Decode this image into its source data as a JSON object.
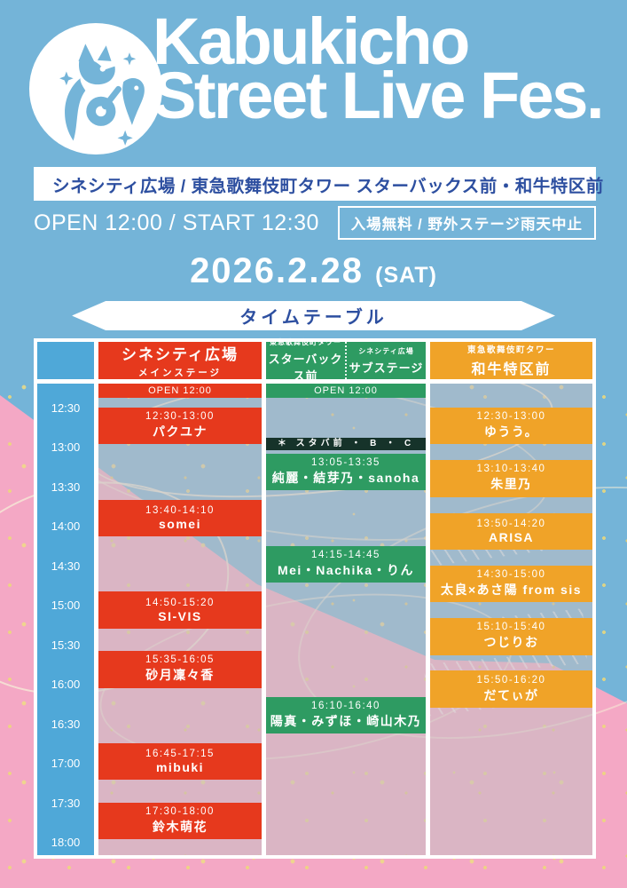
{
  "brand": {
    "title_line1": "Kabukicho",
    "title_line2": "Street Live Fes.",
    "logo": "wolf-with-guitar-logo"
  },
  "venue_line": "シネシティ広場 / 東急歌舞伎町タワー スターバックス前・和牛特区前",
  "open_start": "OPEN 12:00 / START 12:30",
  "admission_note": "入場無料 / 野外ステージ雨天中止",
  "date": "2026.2.28",
  "date_day": "(SAT)",
  "timetable_label": "タイムテーブル",
  "colors": {
    "background_blue": "#74b4d8",
    "pink": "#f4a8c5",
    "time_axis_blue": "#4fa8d8",
    "main_red": "#e6391d",
    "sub_green": "#2e9b62",
    "wagyu_orange": "#f0a328",
    "navy_text": "#2d4fa0",
    "note_bar": "#16332a",
    "confetti_gold": "#ecd97c"
  },
  "timetable": {
    "time_axis": [
      "12:30",
      "13:00",
      "13:30",
      "14:00",
      "14:30",
      "15:00",
      "15:30",
      "16:00",
      "16:30",
      "17:00",
      "17:30",
      "18:00"
    ],
    "stages": [
      {
        "id": "main",
        "color": "#e6391d",
        "venue": "シネシティ広場",
        "stage": "メインステージ",
        "open_label": "OPEN 12:00",
        "events": [
          {
            "time": "12:30-13:00",
            "name": "パクユナ"
          },
          {
            "time": "13:40-14:10",
            "name": "somei"
          },
          {
            "time": "14:50-15:20",
            "name": "SI-VIS"
          },
          {
            "time": "15:35-16:05",
            "name": "砂月凜々香"
          },
          {
            "time": "16:45-17:15",
            "name": "mibuki"
          },
          {
            "time": "17:30-18:00",
            "name": "鈴木萌花"
          }
        ]
      },
      {
        "id": "sub",
        "color": "#2e9b62",
        "header_left": {
          "venue": "東急歌舞伎町タワー",
          "stage": "スターバックス前"
        },
        "header_right": {
          "venue": "シネシティ広場",
          "stage": "サブステージ"
        },
        "open_label": "OPEN 12:00",
        "note": "＊ スタバ前 ・ B ・ C",
        "events": [
          {
            "time": "13:05-13:35",
            "name": "純麗・結芽乃・sanoha"
          },
          {
            "time": "14:15-14:45",
            "name": "Mei・Nachika・りん"
          },
          {
            "time": "16:10-16:40",
            "name": "陽真・みずほ・崎山木乃"
          }
        ]
      },
      {
        "id": "wagyu",
        "color": "#f0a328",
        "venue": "東急歌舞伎町タワー",
        "stage": "和牛特区前",
        "events": [
          {
            "time": "12:30-13:00",
            "name": "ゆうう。"
          },
          {
            "time": "13:10-13:40",
            "name": "朱里乃"
          },
          {
            "time": "13:50-14:20",
            "name": "ARISA"
          },
          {
            "time": "14:30-15:00",
            "name": "太良×あさ陽 from sis"
          },
          {
            "time": "15:10-15:40",
            "name": "つじりお"
          },
          {
            "time": "15:50-16:20",
            "name": "だてぃが"
          }
        ]
      }
    ]
  }
}
